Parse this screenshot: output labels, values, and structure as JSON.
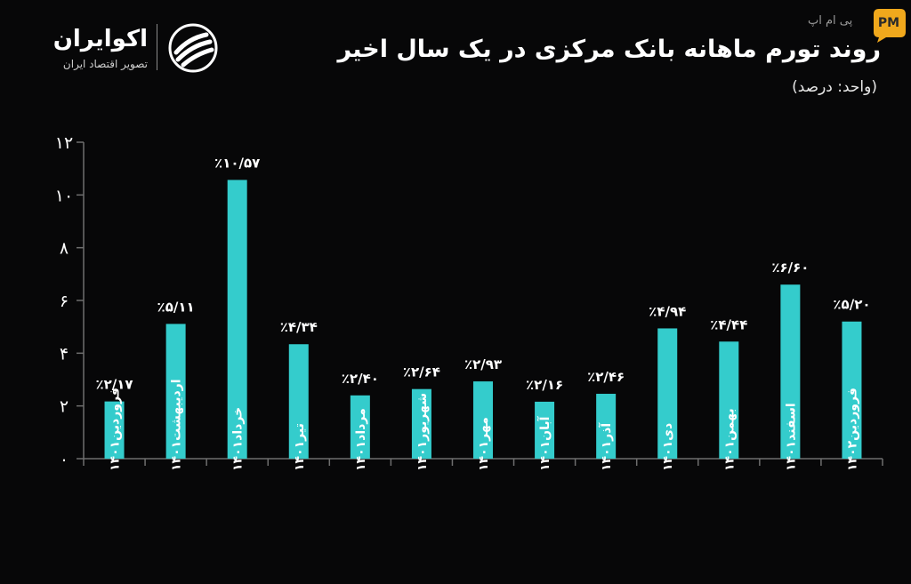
{
  "brand": {
    "name": "اکوایران",
    "tagline": "تصویر اقتصاد ایران"
  },
  "watermark": {
    "text": "پی ام اپ",
    "badge": "PM"
  },
  "colors": {
    "background": "#070708",
    "bar": "#34cccc",
    "axis": "#6e6e6e",
    "text": "#ffffff",
    "watermark_badge": "#f0a81c"
  },
  "chart_data": {
    "type": "bar",
    "title": "روند تورم ماهانه بانک مرکزی در یک سال اخیر",
    "subtitle": "(واحد: درصد)",
    "xlabel": "",
    "ylabel": "",
    "ylim": [
      0,
      12
    ],
    "yticks": [
      0,
      2,
      4,
      6,
      8,
      10,
      12
    ],
    "ytick_labels": [
      "۰",
      "۲",
      "۴",
      "۶",
      "۸",
      "۱۰",
      "۱۲"
    ],
    "grid": false,
    "categories": [
      "فروردین۱۴۰۱",
      "اردیبهشت۱۴۰۱",
      "خرداد۱۴۰۱",
      "تیر۱۴۰۱",
      "مرداد۱۴۰۱",
      "شهریور۱۴۰۱",
      "مهر۱۴۰۱",
      "آبان۱۴۰۱",
      "آذر۱۴۰۱",
      "دی۱۴۰۱",
      "بهمن۱۴۰۱",
      "اسفند۱۴۰۱",
      "فروردین۱۴۰۲"
    ],
    "values": [
      2.17,
      5.11,
      10.57,
      4.34,
      2.4,
      2.64,
      2.93,
      2.16,
      2.46,
      4.94,
      4.44,
      6.6,
      5.2
    ],
    "value_labels": [
      "٪۲/۱۷",
      "٪۵/۱۱",
      "٪۱۰/۵۷",
      "٪۴/۳۴",
      "٪۲/۴۰",
      "٪۲/۶۴",
      "٪۲/۹۳",
      "٪۲/۱۶",
      "٪۲/۴۶",
      "٪۴/۹۴",
      "٪۴/۴۴",
      "٪۶/۶۰",
      "٪۵/۲۰"
    ]
  }
}
